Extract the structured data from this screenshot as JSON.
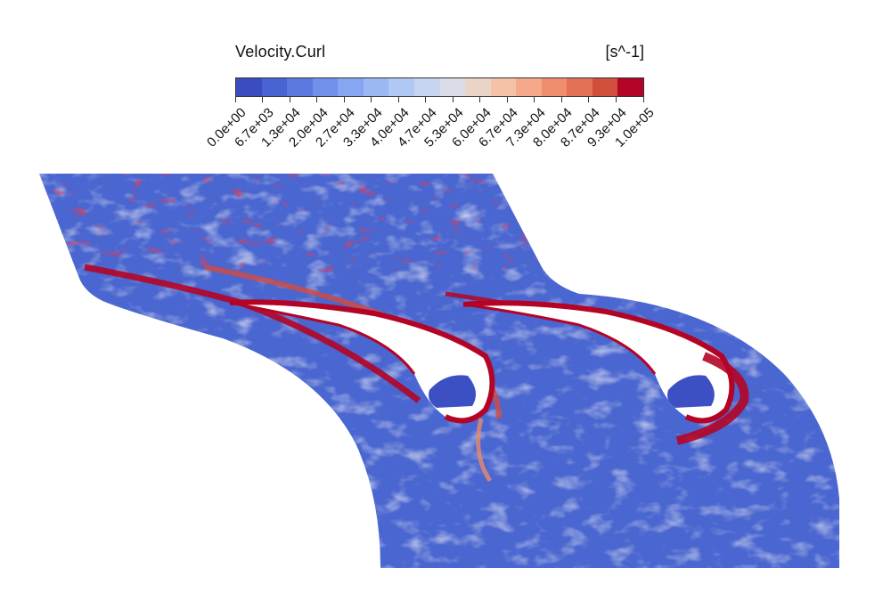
{
  "colorbar": {
    "title": "Velocity.Curl",
    "unit": "[s^-1]",
    "ticks": [
      "0.0e+00",
      "6.7e+03",
      "1.3e+04",
      "2.0e+04",
      "2.7e+04",
      "3.3e+04",
      "4.0e+04",
      "4.7e+04",
      "5.3e+04",
      "6.0e+04",
      "6.7e+04",
      "7.3e+04",
      "8.0e+04",
      "8.7e+04",
      "9.3e+04",
      "1.0e+05"
    ],
    "colors": [
      "#3b4cc0",
      "#4863d2",
      "#5b7ae0",
      "#6f91ea",
      "#86a6f2",
      "#9bb8f5",
      "#b0c8f4",
      "#c6d5f0",
      "#d9dce4",
      "#ead4c6",
      "#f3c2a7",
      "#f5a98a",
      "#ef8e6e",
      "#e27155",
      "#cf4f3c",
      "#b40426"
    ],
    "range": [
      0,
      100000
    ]
  },
  "field": {
    "background_color": "#4a66d0",
    "low_color": "#3b4cc0",
    "high_color": "#b40426",
    "mid_color": "#dcdde3"
  }
}
